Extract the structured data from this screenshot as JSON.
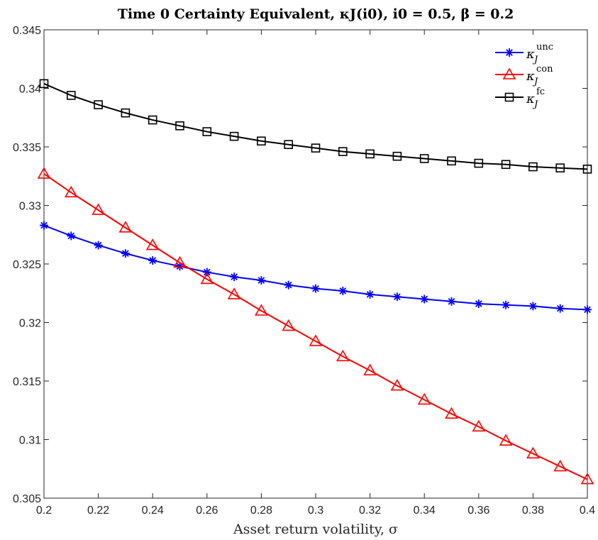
{
  "chart_data": {
    "type": "line",
    "title": "Time 0 Certainty Equivalent, κJ(i0), i0 = 0.5, β = 0.2",
    "xlabel": "Asset return volatility, σ",
    "ylabel": "",
    "xlim": [
      0.2,
      0.4
    ],
    "ylim": [
      0.305,
      0.345
    ],
    "xticks": [
      "0.2",
      "0.22",
      "0.24",
      "0.26",
      "0.28",
      "0.3",
      "0.32",
      "0.34",
      "0.36",
      "0.38",
      "0.4"
    ],
    "yticks": [
      "0.305",
      "0.31",
      "0.315",
      "0.32",
      "0.325",
      "0.33",
      "0.335",
      "0.34",
      "0.345"
    ],
    "grid": false,
    "legend_position": "top-right",
    "x": [
      0.2,
      0.21,
      0.22,
      0.23,
      0.24,
      0.25,
      0.26,
      0.27,
      0.28,
      0.29,
      0.3,
      0.31,
      0.32,
      0.33,
      0.34,
      0.35,
      0.36,
      0.37,
      0.38,
      0.39,
      0.4
    ],
    "series": [
      {
        "name": "κJ unc",
        "color": "#0000ff",
        "marker": "asterisk",
        "values": [
          0.3283,
          0.3274,
          0.3266,
          0.3259,
          0.3253,
          0.3248,
          0.3243,
          0.3239,
          0.3236,
          0.3232,
          0.3229,
          0.3227,
          0.3224,
          0.3222,
          0.322,
          0.3218,
          0.3216,
          0.3215,
          0.3214,
          0.3212,
          0.3211
        ]
      },
      {
        "name": "κJ con",
        "color": "#ff0000",
        "marker": "triangle",
        "values": [
          0.3327,
          0.3311,
          0.3296,
          0.3281,
          0.3266,
          0.3251,
          0.3237,
          0.3224,
          0.321,
          0.3197,
          0.3184,
          0.3171,
          0.3159,
          0.3146,
          0.3134,
          0.3122,
          0.3111,
          0.3099,
          0.3088,
          0.3077,
          0.3066
        ]
      },
      {
        "name": "κJ fc",
        "color": "#000000",
        "marker": "square",
        "values": [
          0.3404,
          0.3394,
          0.3386,
          0.3379,
          0.3373,
          0.3368,
          0.3363,
          0.3359,
          0.3355,
          0.3352,
          0.3349,
          0.3346,
          0.3344,
          0.3342,
          0.334,
          0.3338,
          0.3336,
          0.3335,
          0.3333,
          0.3332,
          0.3331
        ]
      }
    ],
    "legend": [
      {
        "base": "κ",
        "sub": "J",
        "sup": "unc"
      },
      {
        "base": "κ",
        "sub": "J",
        "sup": "con"
      },
      {
        "base": "κ",
        "sub": "J",
        "sup": "fc"
      }
    ]
  }
}
